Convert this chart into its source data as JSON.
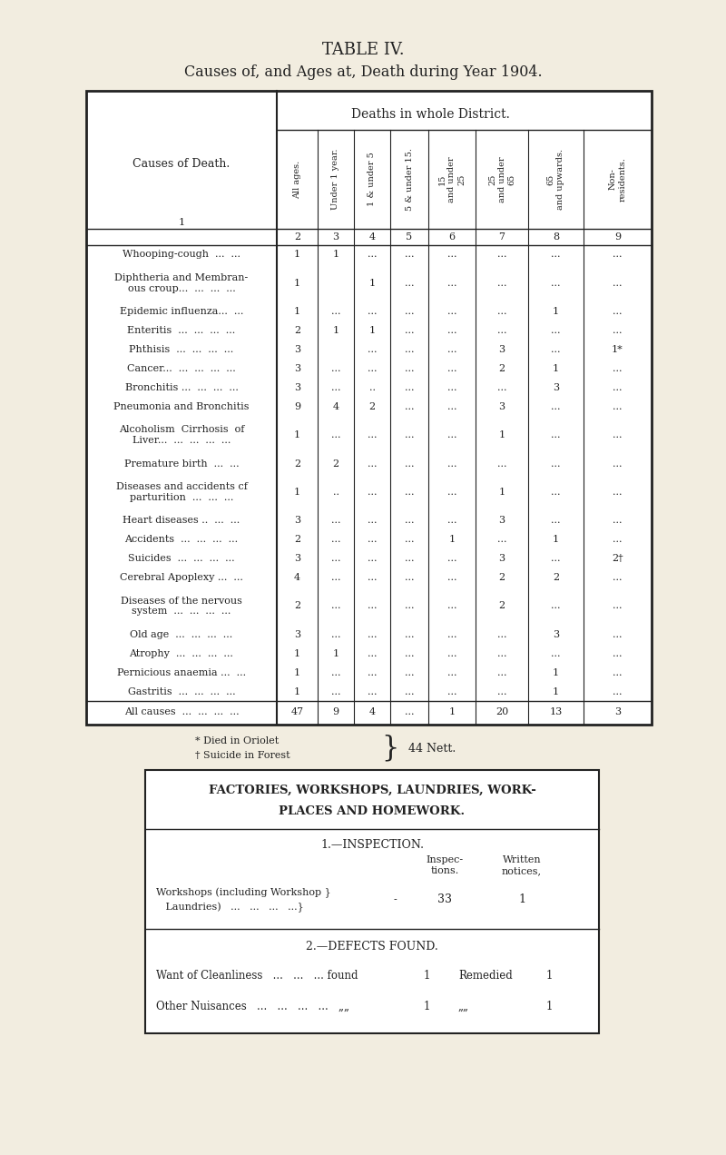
{
  "bg_color": "#f2ede0",
  "title1": "TABLE IV.",
  "title2": "Causes of, and Ages at, Death during Year 1904.",
  "header_main": "Deaths in whole District.",
  "col_headers": [
    "All ages.",
    "Under 1 year.",
    "1 & under 5",
    "5 & under 15.",
    "15\nand under\n25",
    "25\nand under\n65",
    "65\nand upwards.",
    "Non-\nresidents."
  ],
  "col_numbers": [
    "2",
    "3",
    "4",
    "5",
    "6",
    "7",
    "8",
    "9"
  ],
  "cause_label": "Causes of Death.",
  "row_label_num": "1",
  "rows": [
    {
      "cause": [
        "Whooping-cough  ...  ..."
      ],
      "vals": [
        "1",
        "1",
        "...",
        "...",
        "...",
        "...",
        "...",
        "..."
      ]
    },
    {
      "cause": [
        "Diphtheria and Membran-",
        "ous croup...  ...  ...  ..."
      ],
      "vals": [
        "1",
        "",
        "1",
        "...",
        "...",
        "...",
        "...",
        "..."
      ]
    },
    {
      "cause": [
        "Epidemic influenza...  ..."
      ],
      "vals": [
        "1",
        "...",
        "...",
        "...",
        "...",
        "...",
        "1",
        "..."
      ]
    },
    {
      "cause": [
        "Enteritis  ...  ...  ...  ..."
      ],
      "vals": [
        "2",
        "1",
        "1",
        "...",
        "...",
        "...",
        "...",
        "..."
      ]
    },
    {
      "cause": [
        "Phthisis  ...  ...  ...  ..."
      ],
      "vals": [
        "3",
        "",
        "...",
        "...",
        "...",
        "3",
        "...",
        "1*"
      ]
    },
    {
      "cause": [
        "Cancer...  ...  ...  ...  ..."
      ],
      "vals": [
        "3",
        "...",
        "...",
        "...",
        "...",
        "2",
        "1",
        "..."
      ]
    },
    {
      "cause": [
        "Bronchitis ...  ...  ...  ..."
      ],
      "vals": [
        "3",
        "...",
        "..",
        "...",
        "...",
        "...",
        "3",
        "..."
      ]
    },
    {
      "cause": [
        "Pneumonia and Bronchitis"
      ],
      "vals": [
        "9",
        "4",
        "2",
        "...",
        "...",
        "3",
        "...",
        "..."
      ]
    },
    {
      "cause": [
        "Alcoholism  Cirrhosis  of",
        "Liver...  ...  ...  ...  ..."
      ],
      "vals": [
        "1",
        "...",
        "...",
        "...",
        "...",
        "1",
        "...",
        "..."
      ]
    },
    {
      "cause": [
        "Premature birth  ...  ..."
      ],
      "vals": [
        "2",
        "2",
        "...",
        "...",
        "...",
        "...",
        "...",
        "..."
      ]
    },
    {
      "cause": [
        "Diseases and accidents cf",
        "parturition  ...  ...  ..."
      ],
      "vals": [
        "1",
        "..",
        "...",
        "...",
        "...",
        "1",
        "...",
        "..."
      ]
    },
    {
      "cause": [
        "Heart diseases ..  ...  ..."
      ],
      "vals": [
        "3",
        "...",
        "...",
        "...",
        "...",
        "3",
        "...",
        "..."
      ]
    },
    {
      "cause": [
        "Accidents  ...  ...  ...  ..."
      ],
      "vals": [
        "2",
        "...",
        "...",
        "...",
        "1",
        "...",
        "1",
        "..."
      ]
    },
    {
      "cause": [
        "Suicides  ...  ...  ...  ..."
      ],
      "vals": [
        "3",
        "...",
        "...",
        "...",
        "...",
        "3",
        "...",
        "2†"
      ]
    },
    {
      "cause": [
        "Cerebral Apoplexy ...  ..."
      ],
      "vals": [
        "4",
        "...",
        "...",
        "...",
        "...",
        "2",
        "2",
        "..."
      ]
    },
    {
      "cause": [
        "Diseases of the nervous",
        "system  ...  ...  ...  ..."
      ],
      "vals": [
        "2",
        "...",
        "...",
        "...",
        "...",
        "2",
        "...",
        "..."
      ]
    },
    {
      "cause": [
        "Old age  ...  ...  ...  ..."
      ],
      "vals": [
        "3",
        "...",
        "...",
        "...",
        "...",
        "...",
        "3",
        "..."
      ]
    },
    {
      "cause": [
        "Atrophy  ...  ...  ...  ..."
      ],
      "vals": [
        "1",
        "1",
        "...",
        "...",
        "...",
        "...",
        "...",
        "..."
      ]
    },
    {
      "cause": [
        "Pernicious anaemia ...  ..."
      ],
      "vals": [
        "1",
        "...",
        "...",
        "...",
        "...",
        "...",
        "1",
        "..."
      ]
    },
    {
      "cause": [
        "Gastritis  ...  ...  ...  ..."
      ],
      "vals": [
        "1",
        "...",
        "...",
        "...",
        "...",
        "...",
        "1",
        "..."
      ]
    }
  ],
  "total_row": {
    "cause": [
      "All causes  ...  ...  ...  ..."
    ],
    "vals": [
      "47",
      "9",
      "4",
      "...",
      "1",
      "20",
      "13",
      "3"
    ]
  },
  "footnote1": "* Died in Oriolet",
  "footnote2": "† Suicide in Forest",
  "footnote3": "44 Nett.",
  "factories_title1": "FACTORIES, WORKSHOPS, LAUNDRIES, WORK-",
  "factories_title2": "PLACES AND HOMEWORK.",
  "inspection_title": "1.—INSPECTION.",
  "inspection_col1": "Inspec-\ntions.",
  "inspection_col2": "Written\nnotices,",
  "workshops_label1": "Workshops (including Workshop }",
  "workshops_label2": "   Laundries)   ...   ...   ...   ...}",
  "workshops_dash": "-",
  "workshops_val1": "33",
  "workshops_val2": "1",
  "defects_title": "2.—DEFECTS FOUND.",
  "defect1_label": "Want of Cleanliness   ...   ...   ... found",
  "defect1_val1": "1",
  "defect1_mid": "Remedied",
  "defect1_val2": "1",
  "defect2_label": "Other Nuisances   ...   ...   ...   ...   „„",
  "defect2_val1": "1",
  "defect2_mid": "„„",
  "defect2_val2": "1"
}
